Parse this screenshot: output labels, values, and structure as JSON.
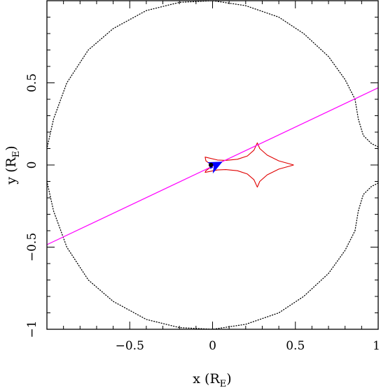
{
  "chart_data": {
    "type": "scatter",
    "title": "",
    "xlabel": {
      "text": "x (R",
      "sub": "E",
      "close": ")"
    },
    "ylabel": {
      "text": "y (R",
      "sub": "E",
      "close": ")"
    },
    "xlim": [
      -1.0,
      1.0
    ],
    "ylim": [
      -1.0,
      1.0
    ],
    "grid": false,
    "x_major_ticks": [
      -0.5,
      0,
      0.5,
      1
    ],
    "x_tick_labels": [
      "−0.5",
      "0",
      "0.5",
      "1"
    ],
    "y_major_ticks": [
      -1,
      -0.5,
      0,
      0.5
    ],
    "y_tick_labels": [
      "−1",
      "−0.5",
      "0",
      "0.5"
    ],
    "minor_tick_step": 0.1,
    "series": [
      {
        "style": "dotted",
        "color": "#000000",
        "kind": "critical_curve_outer",
        "points_upper": [
          [
            0.86,
            0.4
          ],
          [
            0.8,
            0.52
          ],
          [
            0.7,
            0.66
          ],
          [
            0.55,
            0.8
          ],
          [
            0.4,
            0.9
          ],
          [
            0.2,
            0.97
          ],
          [
            0.0,
            1.0
          ],
          [
            -0.2,
            0.99
          ],
          [
            -0.4,
            0.94
          ],
          [
            -0.6,
            0.83
          ],
          [
            -0.75,
            0.7
          ],
          [
            -0.88,
            0.5
          ],
          [
            -0.96,
            0.28
          ],
          [
            -1.0,
            0.1
          ]
        ],
        "points_lower": [
          [
            -1.0,
            -0.1
          ],
          [
            -0.96,
            -0.28
          ],
          [
            -0.88,
            -0.5
          ],
          [
            -0.75,
            -0.7
          ],
          [
            -0.6,
            -0.83
          ],
          [
            -0.4,
            -0.94
          ],
          [
            -0.2,
            -0.99
          ],
          [
            0.0,
            -1.0
          ],
          [
            0.2,
            -0.97
          ],
          [
            0.4,
            -0.9
          ],
          [
            0.55,
            -0.8
          ],
          [
            0.7,
            -0.66
          ],
          [
            0.8,
            -0.52
          ],
          [
            0.86,
            -0.4
          ]
        ]
      },
      {
        "style": "dotted",
        "color": "#000000",
        "kind": "critical_curve_secondary",
        "points_upper": [
          [
            0.86,
            0.4
          ],
          [
            0.88,
            0.28
          ],
          [
            0.91,
            0.18
          ],
          [
            0.96,
            0.13
          ],
          [
            1.0,
            0.11
          ]
        ],
        "points_lower": [
          [
            0.86,
            -0.4
          ],
          [
            0.88,
            -0.28
          ],
          [
            0.91,
            -0.18
          ],
          [
            0.96,
            -0.13
          ],
          [
            1.0,
            -0.11
          ]
        ]
      },
      {
        "style": "solid",
        "color": "#e00000",
        "kind": "caustic",
        "points": [
          [
            0.49,
            0.0
          ],
          [
            0.4,
            0.025
          ],
          [
            0.33,
            0.06
          ],
          [
            0.285,
            0.1
          ],
          [
            0.27,
            0.135
          ],
          [
            0.25,
            0.09
          ],
          [
            0.21,
            0.055
          ],
          [
            0.15,
            0.035
          ],
          [
            0.08,
            0.028
          ],
          [
            0.03,
            0.03
          ],
          [
            -0.045,
            0.048
          ],
          [
            -0.04,
            0.025
          ],
          [
            -0.02,
            0.01
          ],
          [
            0.0,
            0.0
          ],
          [
            -0.02,
            -0.02
          ],
          [
            -0.04,
            -0.035
          ],
          [
            -0.045,
            -0.045
          ],
          [
            0.03,
            -0.03
          ],
          [
            0.08,
            -0.028
          ],
          [
            0.15,
            -0.035
          ],
          [
            0.21,
            -0.055
          ],
          [
            0.25,
            -0.09
          ],
          [
            0.27,
            -0.135
          ],
          [
            0.285,
            -0.1
          ],
          [
            0.33,
            -0.06
          ],
          [
            0.4,
            -0.025
          ],
          [
            0.49,
            0.0
          ]
        ]
      },
      {
        "style": "solid",
        "color": "#ff00ff",
        "kind": "source_trajectory",
        "points": [
          [
            -1.0,
            -0.485
          ],
          [
            1.0,
            0.47
          ]
        ]
      },
      {
        "style": "marker",
        "color": "#0000ff",
        "kind": "source_position_arrow",
        "points": [
          [
            0.0,
            -0.01
          ],
          [
            0.06,
            0.02
          ]
        ]
      },
      {
        "style": "marker",
        "color": "#000000",
        "kind": "lens_position",
        "points": [
          [
            -0.01,
            0.0
          ]
        ]
      }
    ]
  }
}
